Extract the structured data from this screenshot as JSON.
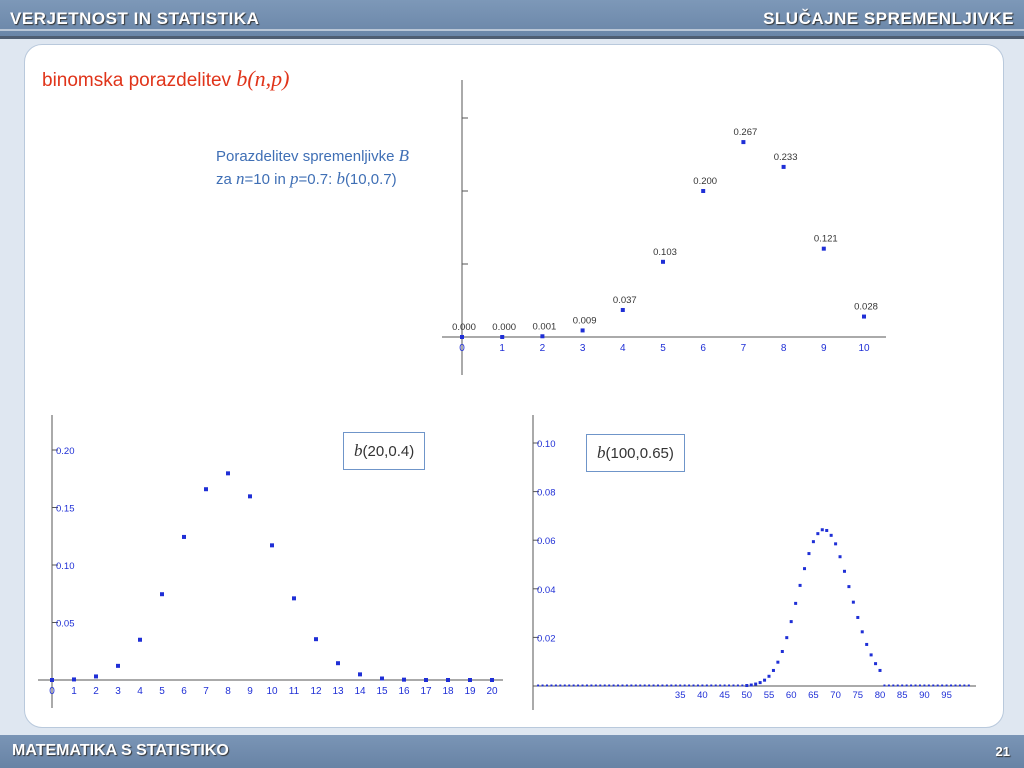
{
  "header": {
    "left": "VERJETNOST IN STATISTIKA",
    "right": "SLUČAJNE SPREMENLJIVKE"
  },
  "footer": {
    "left": "MATEMATIKA S STATISTIKO",
    "page": "21"
  },
  "title": {
    "text": "binomska porazdelitev ",
    "formula": "b(n,p)"
  },
  "caption": {
    "line1": "Porazdelitev spremenljivke ",
    "line1_var": "B",
    "line2_a": "za ",
    "n_var": "n",
    "line2_b": "=10 in ",
    "p_var": "p",
    "line2_c": "=0.7:   ",
    "b_var": "b",
    "line2_d": "(10,0.7)"
  },
  "box1": {
    "b": "b",
    "rest": "(20,0.4)"
  },
  "box2": {
    "b": "b",
    "rest": "(100,0.65)"
  },
  "colors": {
    "accent": "#e0341a",
    "caption": "#3f6fb5",
    "point": "#1f2fd6"
  },
  "chart_data": [
    {
      "type": "scatter",
      "x": [
        0,
        1,
        2,
        3,
        4,
        5,
        6,
        7,
        8,
        9,
        10
      ],
      "y": [
        0.0,
        0.0,
        0.001,
        0.009,
        0.037,
        0.103,
        0.2,
        0.267,
        0.233,
        0.121,
        0.028
      ],
      "data_labels": [
        "0.000",
        "0.000",
        "0.001",
        "0.009",
        "0.037",
        "0.103",
        "0.200",
        "0.267",
        "0.233",
        "0.121",
        "0.028"
      ],
      "x_ticks": [
        "0",
        "1",
        "2",
        "3",
        "4",
        "5",
        "6",
        "7",
        "8",
        "9",
        "10"
      ],
      "ylim": [
        0,
        0.3
      ]
    },
    {
      "type": "scatter",
      "x": [
        0,
        1,
        2,
        3,
        4,
        5,
        6,
        7,
        8,
        9,
        10,
        11,
        12,
        13,
        14,
        15,
        16,
        17,
        18,
        19,
        20
      ],
      "y": [
        0.0,
        0.0005,
        0.0031,
        0.0123,
        0.035,
        0.0746,
        0.1244,
        0.1659,
        0.1797,
        0.1597,
        0.1171,
        0.071,
        0.0355,
        0.0146,
        0.0049,
        0.0013,
        0.0003,
        0.0,
        0.0,
        0.0,
        0.0
      ],
      "x_ticks": [
        "0",
        "1",
        "2",
        "3",
        "4",
        "5",
        "6",
        "7",
        "8",
        "9",
        "10",
        "11",
        "12",
        "13",
        "14",
        "15",
        "16",
        "17",
        "18",
        "19",
        "20"
      ],
      "y_ticks": [
        "0.05",
        "0.10",
        "0.15",
        "0.20"
      ],
      "ylim": [
        0,
        0.22
      ]
    },
    {
      "type": "scatter",
      "x": [
        50,
        51,
        52,
        53,
        54,
        55,
        56,
        57,
        58,
        59,
        60,
        61,
        62,
        63,
        64,
        65,
        66,
        67,
        68,
        69,
        70,
        71,
        72,
        73,
        74,
        75,
        76,
        77,
        78,
        79,
        80
      ],
      "y": [
        0.0002,
        0.0004,
        0.0008,
        0.0014,
        0.0024,
        0.004,
        0.0064,
        0.0098,
        0.0142,
        0.0199,
        0.0265,
        0.034,
        0.0414,
        0.0483,
        0.0545,
        0.0594,
        0.0627,
        0.0643,
        0.064,
        0.062,
        0.0585,
        0.0532,
        0.0472,
        0.0409,
        0.0345,
        0.0282,
        0.0223,
        0.0171,
        0.0128,
        0.0092,
        0.0064
      ],
      "x_ticks": [
        "35",
        "40",
        "45",
        "50",
        "55",
        "60",
        "65",
        "70",
        "75",
        "80",
        "85",
        "90",
        "95"
      ],
      "y_ticks": [
        "0.02",
        "0.04",
        "0.06",
        "0.08",
        "0.10"
      ],
      "ylim": [
        0,
        0.1
      ]
    }
  ]
}
